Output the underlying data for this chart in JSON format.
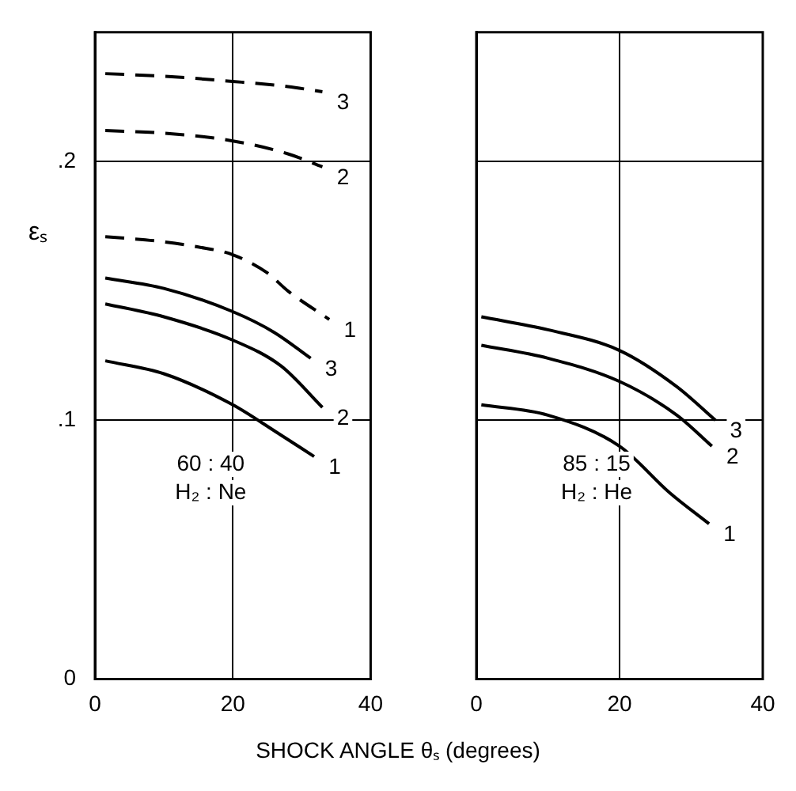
{
  "chart_data": [
    {
      "type": "line",
      "ylabel": "εₛ",
      "xlabel": "SHOCK ANGLE θₛ (degrees)",
      "xlim": [
        0,
        40
      ],
      "xticks": [
        0,
        20,
        40
      ],
      "ylim": [
        0,
        0.25
      ],
      "yticks": [
        0,
        {
          "value": 0.1,
          "label": ".1"
        },
        {
          "value": 0.2,
          "label": ".2"
        }
      ],
      "grid": true,
      "legend": false,
      "marker": "none",
      "series": [
        {
          "name": "3",
          "color": "#000000",
          "line_style": "dashed",
          "x": [
            1.5,
            10,
            20,
            28,
            33
          ],
          "values": [
            0.234,
            0.233,
            0.231,
            0.229,
            0.227
          ]
        },
        {
          "name": "2",
          "color": "#000000",
          "line_style": "dashed",
          "x": [
            1.5,
            10,
            20,
            28,
            33
          ],
          "values": [
            0.212,
            0.211,
            0.208,
            0.203,
            0.198
          ]
        },
        {
          "name": "1",
          "color": "#000000",
          "line_style": "dashed",
          "x": [
            1.5,
            10,
            15,
            20,
            25,
            28,
            34
          ],
          "values": [
            0.171,
            0.169,
            0.167,
            0.164,
            0.157,
            0.15,
            0.139
          ]
        },
        {
          "name": "3",
          "color": "#000000",
          "line_style": "solid",
          "x": [
            1.5,
            10,
            20,
            26,
            31.3
          ],
          "values": [
            0.155,
            0.151,
            0.142,
            0.134,
            0.124
          ]
        },
        {
          "name": "2",
          "color": "#000000",
          "line_style": "solid",
          "x": [
            1.5,
            10,
            20,
            27,
            33
          ],
          "values": [
            0.145,
            0.14,
            0.131,
            0.121,
            0.105
          ]
        },
        {
          "name": "1",
          "color": "#000000",
          "line_style": "solid",
          "x": [
            1.5,
            10,
            20,
            26,
            31.8
          ],
          "values": [
            0.123,
            0.118,
            0.106,
            0.096,
            0.086
          ]
        }
      ],
      "annotations": [
        "60 : 40",
        "H₂ : Ne"
      ]
    },
    {
      "type": "line",
      "xlim": [
        0,
        40
      ],
      "xticks": [
        0,
        20,
        40
      ],
      "ylim": [
        0,
        0.25
      ],
      "yticks": [
        {
          "value": 0,
          "label": null
        },
        {
          "value": 0.1,
          "label": null
        },
        {
          "value": 0.2,
          "label": null
        }
      ],
      "tick_labels": "x",
      "grid": true,
      "legend": false,
      "marker": "none",
      "series": [
        {
          "name": "3",
          "color": "#000000",
          "line_style": "solid",
          "x": [
            0.7,
            10,
            20,
            28,
            33.4
          ],
          "values": [
            0.14,
            0.135,
            0.127,
            0.113,
            0.1
          ]
        },
        {
          "name": "2",
          "color": "#000000",
          "line_style": "solid",
          "x": [
            0.7,
            10,
            20,
            28,
            32.9
          ],
          "values": [
            0.129,
            0.124,
            0.115,
            0.102,
            0.09
          ]
        },
        {
          "name": "1",
          "color": "#000000",
          "line_style": "solid",
          "x": [
            0.7,
            10,
            20,
            27,
            32.5
          ],
          "values": [
            0.106,
            0.102,
            0.09,
            0.072,
            0.06
          ]
        }
      ],
      "annotations": [
        "85 : 15",
        "H₂ : He"
      ]
    }
  ]
}
